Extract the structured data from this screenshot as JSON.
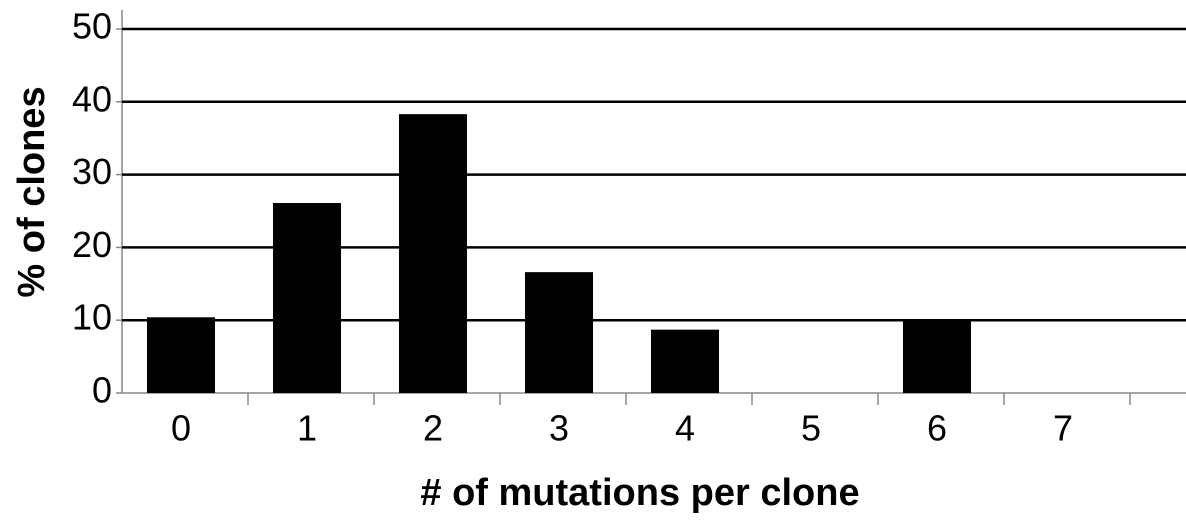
{
  "chart_data": {
    "type": "bar",
    "x_label": "# of mutations per clone",
    "y_label": "% of clones",
    "categories": [
      "0",
      "1",
      "2",
      "3",
      "4",
      "5",
      "6",
      "7"
    ],
    "values": [
      10.4,
      26.1,
      38.3,
      16.6,
      8.7,
      0,
      10,
      0
    ],
    "color": "#000000",
    "ylim": [
      0,
      50
    ],
    "yticks": [
      0,
      10,
      20,
      30,
      40,
      50
    ],
    "grid": true
  }
}
